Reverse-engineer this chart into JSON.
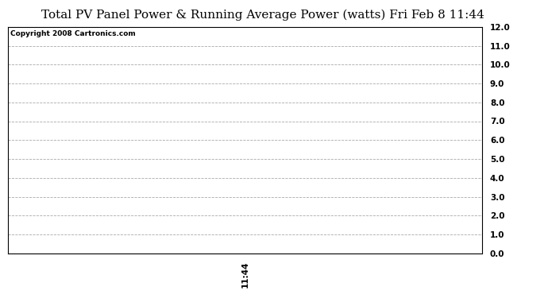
{
  "title": "Total PV Panel Power & Running Average Power (watts) Fri Feb 8 11:44",
  "copyright_text": "Copyright 2008 Cartronics.com",
  "xlim": [
    0,
    1
  ],
  "ylim": [
    0.0,
    12.0
  ],
  "yticks": [
    0.0,
    1.0,
    2.0,
    3.0,
    4.0,
    5.0,
    6.0,
    7.0,
    8.0,
    9.0,
    10.0,
    11.0,
    12.0
  ],
  "xticks": [
    0.5
  ],
  "xtick_labels": [
    "11:44"
  ],
  "background_color": "#ffffff",
  "grid_color": "#aaaaaa",
  "title_fontsize": 11,
  "copyright_fontsize": 6.5,
  "tick_fontsize": 7.5,
  "xtick_fontsize": 7.5,
  "xlabel_rotation": 90
}
